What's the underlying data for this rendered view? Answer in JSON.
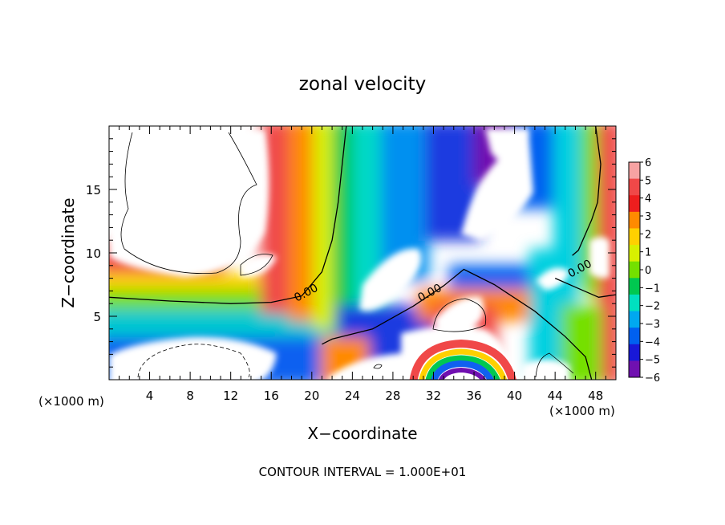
{
  "chart_data": {
    "type": "heatmap",
    "title": "zonal velocity",
    "xlabel": "X−coordinate",
    "ylabel": "Z−coordinate",
    "x_unit_left": "(×1000 m)",
    "x_unit_right": "(×1000 m)",
    "footer": "CONTOUR INTERVAL = 1.000E+01",
    "xlim": [
      0,
      50
    ],
    "ylim": [
      0,
      20
    ],
    "x_ticks": [
      4,
      8,
      12,
      16,
      20,
      24,
      28,
      32,
      36,
      40,
      44,
      48
    ],
    "x_minor_step": 1,
    "y_ticks": [
      5,
      10,
      15
    ],
    "y_minor_step": 1,
    "colorbar": {
      "levels": [
        6,
        5,
        4,
        3,
        2,
        1,
        0,
        -1,
        -2,
        -3,
        -4,
        -5,
        -6
      ],
      "labels": [
        "6",
        "5",
        "4",
        "3",
        "2",
        "1",
        "0",
        "−1",
        "−2",
        "−3",
        "−4",
        "−5",
        "−6"
      ],
      "colors": [
        "#f7a3a3",
        "#f04848",
        "#ee1e1e",
        "#ff8a00",
        "#ffd000",
        "#d8f000",
        "#74e000",
        "#00c850",
        "#00e0c0",
        "#00a8f0",
        "#0060f0",
        "#1818d8",
        "#7010b0"
      ]
    },
    "contour_labels": [
      {
        "text": "0.00",
        "x": 19.6,
        "y": 6.6
      },
      {
        "text": "0.00",
        "x": 31.8,
        "y": 6.6
      },
      {
        "text": "0.00",
        "x": 46.6,
        "y": 8.5
      }
    ],
    "zero_contours": [
      [
        [
          0,
          6.5
        ],
        [
          6,
          6.2
        ],
        [
          12,
          6.0
        ],
        [
          16,
          6.1
        ],
        [
          19,
          6.6
        ],
        [
          21,
          8.5
        ],
        [
          22,
          11
        ],
        [
          22.6,
          14
        ],
        [
          23,
          17
        ],
        [
          23.4,
          20
        ]
      ],
      [
        [
          21,
          2.8
        ],
        [
          22,
          3.2
        ],
        [
          26,
          4.0
        ],
        [
          30,
          5.8
        ],
        [
          33,
          7.4
        ],
        [
          35,
          8.7
        ],
        [
          38,
          7.5
        ],
        [
          42,
          5.4
        ],
        [
          45,
          3.4
        ],
        [
          47,
          1.8
        ],
        [
          47.6,
          0
        ]
      ],
      [
        [
          44,
          8
        ],
        [
          46,
          7.3
        ],
        [
          48.3,
          6.5
        ],
        [
          50,
          6.7
        ]
      ],
      [
        [
          48,
          20
        ],
        [
          48.5,
          17
        ],
        [
          48.2,
          14
        ],
        [
          47.6,
          12.6
        ],
        [
          46.3,
          10.2
        ],
        [
          45.7,
          9.8
        ]
      ]
    ]
  }
}
